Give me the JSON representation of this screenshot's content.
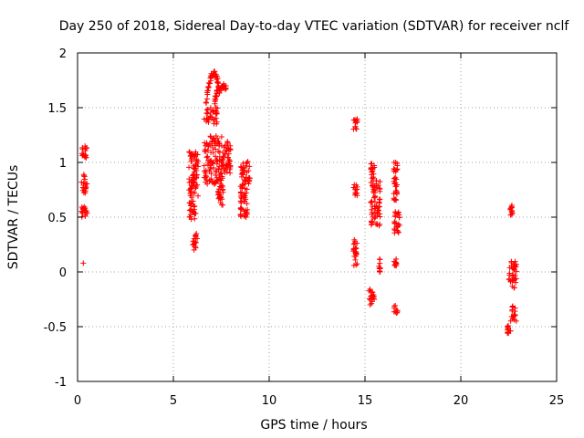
{
  "chart_data": {
    "type": "scatter",
    "title": "Day 250 of 2018, Sidereal Day-to-day VTEC variation (SDTVAR) for receiver nclf",
    "xlabel": "GPS time / hours",
    "ylabel": "SDTVAR / TECUs",
    "xlim": [
      0,
      25
    ],
    "ylim": [
      -1,
      2
    ],
    "xticks": [
      0,
      5,
      10,
      15,
      20,
      25
    ],
    "yticks": [
      -1,
      -0.5,
      0,
      0.5,
      1,
      1.5,
      2
    ],
    "grid": true,
    "marker": "+",
    "color": "#ff0000",
    "clusters": [
      {
        "x": [
          0.2,
          0.5
        ],
        "y": [
          1.02,
          1.15
        ]
      },
      {
        "x": [
          0.2,
          0.5
        ],
        "y": [
          0.72,
          0.9
        ]
      },
      {
        "x": [
          0.2,
          0.5
        ],
        "y": [
          0.47,
          0.6
        ]
      },
      {
        "x": [
          6.0,
          6.25
        ],
        "y": [
          0.2,
          0.35
        ]
      },
      {
        "x": [
          5.8,
          6.2
        ],
        "y": [
          0.48,
          0.65
        ]
      },
      {
        "x": [
          5.8,
          6.3
        ],
        "y": [
          0.68,
          1.1
        ]
      },
      {
        "x": [
          6.6,
          7.6
        ],
        "y": [
          0.8,
          1.25
        ]
      },
      {
        "x": [
          6.6,
          7.3
        ],
        "y": [
          1.35,
          1.5
        ]
      },
      {
        "x": [
          7.3,
          7.6
        ],
        "y": [
          0.6,
          0.8
        ]
      },
      {
        "x": [
          7.6,
          8.0
        ],
        "y": [
          0.9,
          1.2
        ]
      },
      {
        "x": [
          8.5,
          8.9
        ],
        "y": [
          0.5,
          0.75
        ]
      },
      {
        "x": [
          8.5,
          9.0
        ],
        "y": [
          0.75,
          1.02
        ]
      },
      {
        "x": [
          14.4,
          14.6
        ],
        "y": [
          1.3,
          1.4
        ]
      },
      {
        "x": [
          14.4,
          14.6
        ],
        "y": [
          0.68,
          0.8
        ]
      },
      {
        "x": [
          14.4,
          14.6
        ],
        "y": [
          0.05,
          0.3
        ]
      },
      {
        "x": [
          15.2,
          15.5
        ],
        "y": [
          -0.3,
          -0.15
        ]
      },
      {
        "x": [
          15.3,
          15.8
        ],
        "y": [
          0.4,
          0.85
        ]
      },
      {
        "x": [
          15.3,
          15.5
        ],
        "y": [
          0.85,
          1.0
        ]
      },
      {
        "x": [
          15.7,
          15.8
        ],
        "y": [
          0.0,
          0.12
        ]
      },
      {
        "x": [
          16.5,
          16.7
        ],
        "y": [
          0.65,
          1.02
        ]
      },
      {
        "x": [
          16.5,
          16.8
        ],
        "y": [
          0.35,
          0.55
        ]
      },
      {
        "x": [
          16.5,
          16.7
        ],
        "y": [
          0.05,
          0.12
        ]
      },
      {
        "x": [
          16.5,
          16.7
        ],
        "y": [
          -0.38,
          -0.3
        ]
      },
      {
        "x": [
          22.5,
          22.7
        ],
        "y": [
          0.52,
          0.62
        ]
      },
      {
        "x": [
          22.5,
          22.9
        ],
        "y": [
          -0.15,
          0.12
        ]
      },
      {
        "x": [
          22.6,
          22.9
        ],
        "y": [
          -0.45,
          -0.3
        ]
      },
      {
        "x": [
          22.4,
          22.6
        ],
        "y": [
          -0.57,
          -0.48
        ]
      }
    ],
    "curves": [
      {
        "x": [
          6.7,
          6.85,
          7.0,
          7.15,
          7.3,
          7.4
        ],
        "y": [
          1.55,
          1.7,
          1.8,
          1.82,
          1.75,
          1.65
        ]
      },
      {
        "x": [
          7.4,
          7.6,
          7.75
        ],
        "y": [
          1.65,
          1.7,
          1.68
        ]
      },
      {
        "x": [
          7.15,
          7.25,
          7.35
        ],
        "y": [
          1.55,
          1.62,
          1.68
        ]
      },
      {
        "x": [
          5.9,
          6.1
        ],
        "y": [
          0.75,
          0.88
        ]
      }
    ],
    "points": [
      {
        "x": 0.3,
        "y": 0.08
      },
      {
        "x": 7.1,
        "y": 0.95
      },
      {
        "x": 14.5,
        "y": 1.36
      },
      {
        "x": 16.6,
        "y": 1.0
      }
    ]
  }
}
